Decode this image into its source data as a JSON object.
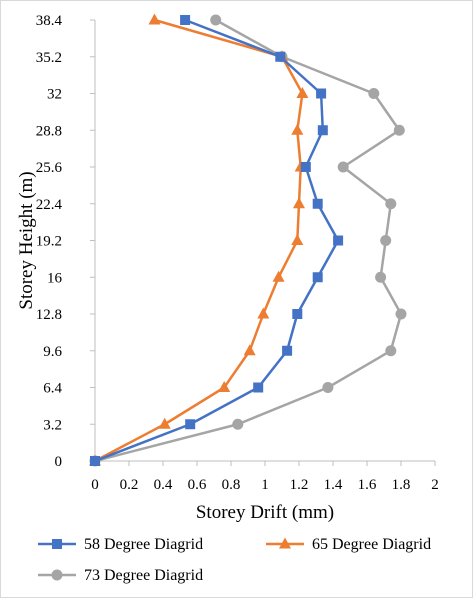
{
  "chart_data": {
    "type": "line",
    "title": "",
    "xlabel": "Storey Drift (mm)",
    "ylabel": "Storey Height (m)",
    "xlim": [
      0,
      2
    ],
    "ylim": [
      0,
      38.4
    ],
    "x_ticks": [
      "0",
      "0.2",
      "0.4",
      "0.6",
      "0.8",
      "1",
      "1.2",
      "1.4",
      "1.6",
      "1.8",
      "2"
    ],
    "y_ticks": [
      "0",
      "3.2",
      "6.4",
      "9.6",
      "12.8",
      "16",
      "19.2",
      "22.4",
      "25.6",
      "28.8",
      "32",
      "35.2",
      "38.4"
    ],
    "grid": "none",
    "legend_position": "bottom",
    "series": [
      {
        "name": "58 Degree Diagrid",
        "color": "#4472c4",
        "marker": "square",
        "points": [
          [
            0,
            0
          ],
          [
            0.56,
            3.2
          ],
          [
            0.96,
            6.4
          ],
          [
            1.13,
            9.6
          ],
          [
            1.19,
            12.8
          ],
          [
            1.31,
            16
          ],
          [
            1.43,
            19.2
          ],
          [
            1.31,
            22.4
          ],
          [
            1.24,
            25.6
          ],
          [
            1.34,
            28.8
          ],
          [
            1.33,
            32
          ],
          [
            1.09,
            35.2
          ],
          [
            0.53,
            38.4
          ]
        ]
      },
      {
        "name": "65 Degree Diagrid",
        "color": "#ed7d31",
        "marker": "triangle",
        "points": [
          [
            0,
            0
          ],
          [
            0.41,
            3.2
          ],
          [
            0.76,
            6.4
          ],
          [
            0.91,
            9.6
          ],
          [
            0.99,
            12.8
          ],
          [
            1.08,
            16
          ],
          [
            1.19,
            19.2
          ],
          [
            1.2,
            22.4
          ],
          [
            1.21,
            25.6
          ],
          [
            1.19,
            28.8
          ],
          [
            1.22,
            32
          ],
          [
            1.1,
            35.2
          ],
          [
            0.35,
            38.4
          ]
        ]
      },
      {
        "name": "73 Degree Diagrid",
        "color": "#a5a5a5",
        "marker": "circle",
        "points": [
          [
            0,
            0
          ],
          [
            0.84,
            3.2
          ],
          [
            1.37,
            6.4
          ],
          [
            1.74,
            9.6
          ],
          [
            1.8,
            12.8
          ],
          [
            1.68,
            16
          ],
          [
            1.71,
            19.2
          ],
          [
            1.74,
            22.4
          ],
          [
            1.46,
            25.6
          ],
          [
            1.79,
            28.8
          ],
          [
            1.64,
            32
          ],
          [
            1.1,
            35.2
          ],
          [
            0.71,
            38.4
          ]
        ]
      }
    ]
  }
}
